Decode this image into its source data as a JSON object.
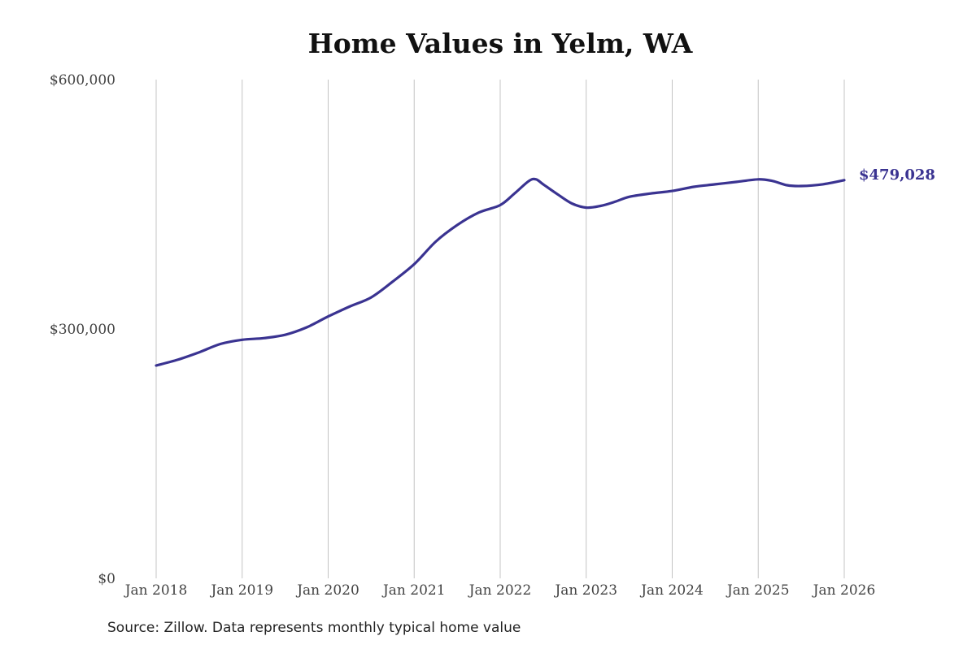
{
  "chart_data": {
    "type": "line",
    "title": "Home Values in Yelm, WA",
    "xlabel": "",
    "ylabel": "",
    "x_ticks": [
      "Jan 2018",
      "Jan 2019",
      "Jan 2020",
      "Jan 2021",
      "Jan 2022",
      "Jan 2023",
      "Jan 2024",
      "Jan 2025",
      "Jan 2026"
    ],
    "y_ticks": [
      "$0",
      "$300,000",
      "$600,000"
    ],
    "ylim": [
      0,
      600000
    ],
    "xlim": [
      "2018-01",
      "2026-01"
    ],
    "grid": "vertical",
    "line_color": "#3a3391",
    "end_value_label": "$479,028",
    "series": [
      {
        "x": [
          "2018-01",
          "2018-04",
          "2018-07",
          "2018-10",
          "2019-01",
          "2019-04",
          "2019-07",
          "2019-10",
          "2020-01",
          "2020-04",
          "2020-07",
          "2020-10",
          "2021-01",
          "2021-04",
          "2021-07",
          "2021-10",
          "2022-01",
          "2022-03",
          "2022-05",
          "2022-06",
          "2022-07",
          "2022-09",
          "2022-11",
          "2023-01",
          "2023-03",
          "2023-05",
          "2023-07",
          "2023-10",
          "2024-01",
          "2024-04",
          "2024-07",
          "2024-10",
          "2025-01",
          "2025-03",
          "2025-05",
          "2025-07",
          "2025-10",
          "2026-01"
        ],
        "values": [
          256000,
          263000,
          272000,
          282000,
          287000,
          289000,
          293000,
          302000,
          315000,
          327000,
          338000,
          357000,
          378000,
          405000,
          425000,
          440000,
          449000,
          463000,
          478000,
          480000,
          474000,
          462000,
          451000,
          446000,
          448000,
          453000,
          459000,
          463000,
          466000,
          471000,
          474000,
          477000,
          480000,
          478000,
          473000,
          472000,
          474000,
          479028
        ]
      }
    ]
  },
  "footer": {
    "source": "Source: Zillow. Data represents monthly typical home value"
  }
}
